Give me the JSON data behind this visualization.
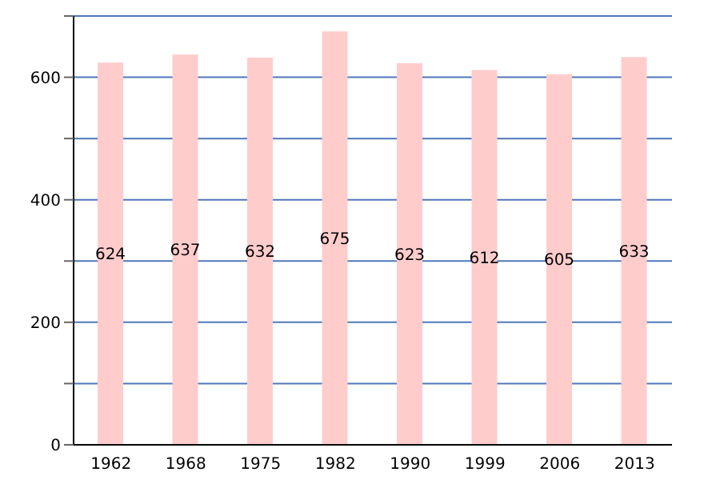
{
  "chart_data": {
    "type": "bar",
    "categories": [
      "1962",
      "1968",
      "1975",
      "1982",
      "1990",
      "1999",
      "2006",
      "2013"
    ],
    "values": [
      624,
      637,
      632,
      675,
      623,
      612,
      605,
      633
    ],
    "color": "#ffcccc",
    "data_labels": true,
    "ylim": [
      0,
      700
    ],
    "yticks": [
      0,
      {
        "value": 100,
        "label": null
      },
      200,
      {
        "value": 300,
        "label": null
      },
      400,
      {
        "value": 500,
        "label": null
      },
      600,
      {
        "value": 700,
        "label": null
      }
    ],
    "grid": "y"
  }
}
